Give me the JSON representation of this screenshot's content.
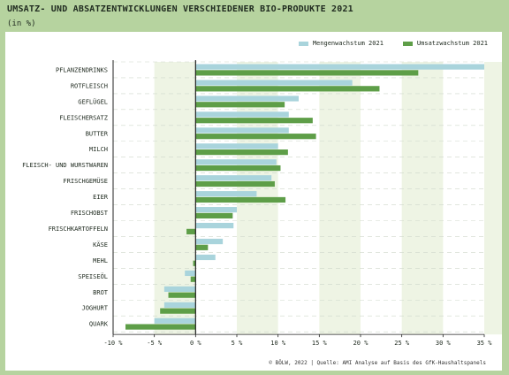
{
  "header": {
    "title": "UMSATZ- UND ABSATZENTWICKLUNGEN VERSCHIEDENER BIO-PRODUKTE 2021",
    "subtitle": "(in %)"
  },
  "source": "© BÖLW, 2022 | Quelle: AMI Analyse auf Basis des GfK-Haushaltspanels",
  "colors": {
    "background": "#b6d39f",
    "mengen": "#a9d4dc",
    "umsatz": "#5e9e48",
    "band": "#eef4e4"
  },
  "chart_data": {
    "type": "bar",
    "orientation": "horizontal",
    "title": "UMSATZ- UND ABSATZENTWICKLUNGEN VERSCHIEDENER BIO-PRODUKTE 2021",
    "subtitle": "(in %)",
    "categories": [
      "PFLANZENDRINKS",
      "ROTFLEISCH",
      "GEFLÜGEL",
      "FLEISCHERSATZ",
      "BUTTER",
      "MILCH",
      "FLEISCH- UND WURSTWAREN",
      "FRISCHGEMÜSE",
      "EIER",
      "FRISCHOBST",
      "FRISCHKARTOFFELN",
      "KÄSE",
      "MEHL",
      "SPEISEÖL",
      "BROT",
      "JOGHURT",
      "QUARK"
    ],
    "series": [
      {
        "name": "Mengenwachstum 2021",
        "color": "#a9d4dc",
        "values": [
          35,
          19,
          12.5,
          11.3,
          11.3,
          10,
          9.8,
          9.2,
          7.4,
          5,
          4.6,
          3.3,
          2.4,
          -1.3,
          -3.8,
          -3.8,
          -5
        ]
      },
      {
        "name": "Umsatzwachstum 2021",
        "color": "#5e9e48",
        "values": [
          27,
          22.3,
          10.8,
          14.2,
          14.6,
          11.2,
          10.3,
          9.6,
          10.9,
          4.5,
          -1.1,
          1.5,
          -0.3,
          -0.6,
          -3.3,
          -4.3,
          -8.5
        ]
      }
    ],
    "xlim": [
      -10,
      35
    ],
    "xticks": [
      "-10 %",
      "-5 %",
      "0 %",
      "5 %",
      "10 %",
      "15 %",
      "20 %",
      "25 %",
      "30 %",
      "35 %"
    ],
    "legend": "top-right"
  }
}
